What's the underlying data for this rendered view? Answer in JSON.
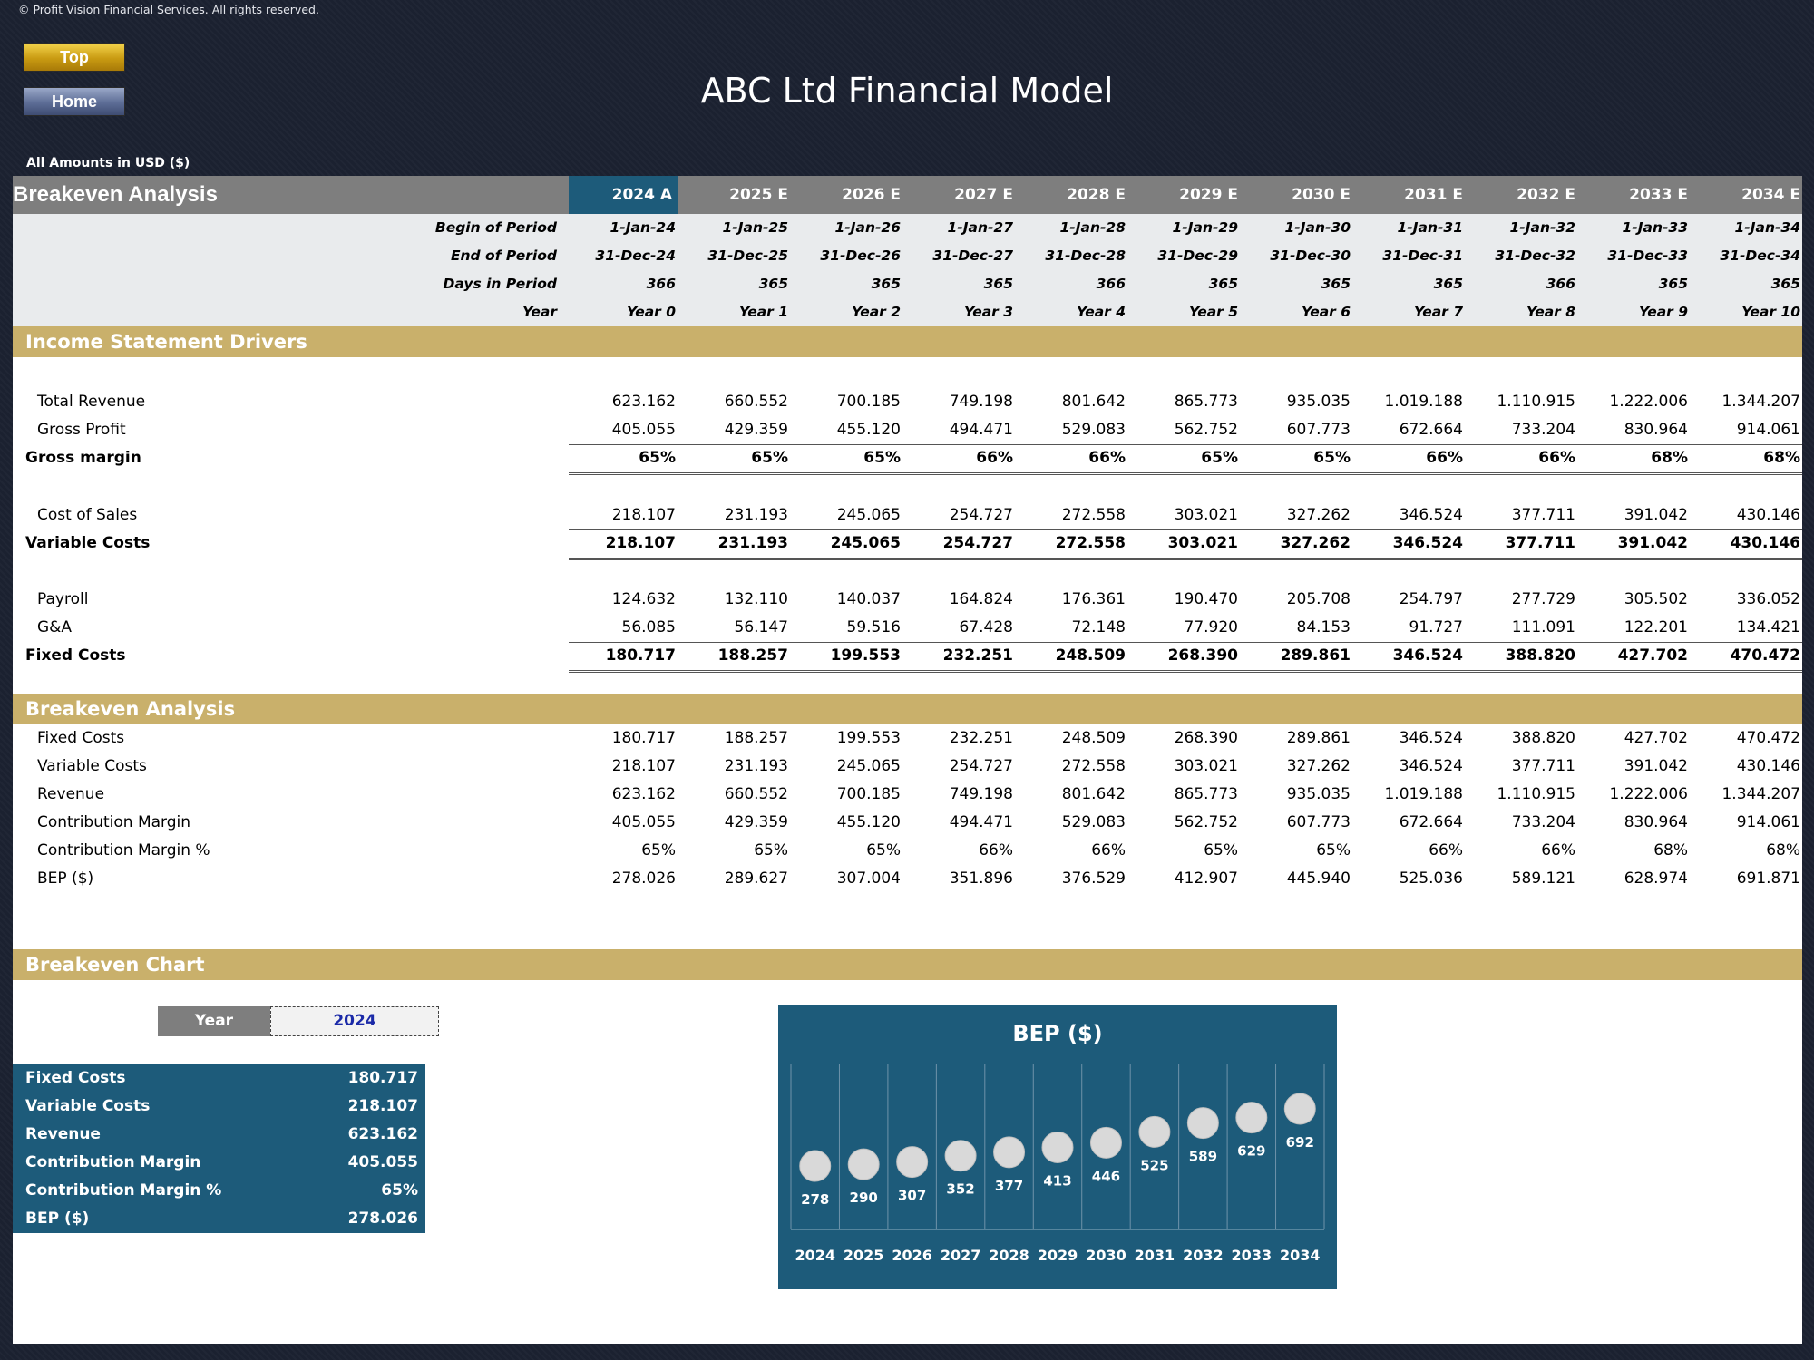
{
  "copyright": "© Profit Vision Financial Services. All rights reserved.",
  "nav": {
    "top_label": "Top",
    "home_label": "Home"
  },
  "title": "ABC Ltd Financial Model",
  "amounts_note": "All Amounts in  USD ($)",
  "header": {
    "title": "Breakeven Analysis",
    "years": [
      "2024 A",
      "2025 E",
      "2026 E",
      "2027 E",
      "2028 E",
      "2029 E",
      "2030 E",
      "2031 E",
      "2032 E",
      "2033 E",
      "2034 E"
    ]
  },
  "period_rows": [
    {
      "label": "Begin of Period",
      "values": [
        "1-Jan-24",
        "1-Jan-25",
        "1-Jan-26",
        "1-Jan-27",
        "1-Jan-28",
        "1-Jan-29",
        "1-Jan-30",
        "1-Jan-31",
        "1-Jan-32",
        "1-Jan-33",
        "1-Jan-34"
      ]
    },
    {
      "label": "End of Period",
      "values": [
        "31-Dec-24",
        "31-Dec-25",
        "31-Dec-26",
        "31-Dec-27",
        "31-Dec-28",
        "31-Dec-29",
        "31-Dec-30",
        "31-Dec-31",
        "31-Dec-32",
        "31-Dec-33",
        "31-Dec-34"
      ]
    },
    {
      "label": "Days in Period",
      "values": [
        "366",
        "365",
        "365",
        "365",
        "366",
        "365",
        "365",
        "365",
        "366",
        "365",
        "365"
      ]
    },
    {
      "label": "Year",
      "values": [
        "Year 0",
        "Year 1",
        "Year 2",
        "Year 3",
        "Year 4",
        "Year 5",
        "Year 6",
        "Year 7",
        "Year 8",
        "Year 9",
        "Year 10"
      ]
    }
  ],
  "income_section": {
    "title": "Income Statement Drivers",
    "rows": [
      {
        "label": "Total Revenue",
        "values": [
          "623.162",
          "660.552",
          "700.185",
          "749.198",
          "801.642",
          "865.773",
          "935.035",
          "1.019.188",
          "1.110.915",
          "1.222.006",
          "1.344.207"
        ]
      },
      {
        "label": "Gross Profit",
        "values": [
          "405.055",
          "429.359",
          "455.120",
          "494.471",
          "529.083",
          "562.752",
          "607.773",
          "672.664",
          "733.204",
          "830.964",
          "914.061"
        ]
      },
      {
        "label": "Gross margin",
        "values": [
          "65%",
          "65%",
          "65%",
          "66%",
          "66%",
          "65%",
          "65%",
          "66%",
          "66%",
          "68%",
          "68%"
        ]
      },
      {
        "label": "Cost of Sales",
        "values": [
          "218.107",
          "231.193",
          "245.065",
          "254.727",
          "272.558",
          "303.021",
          "327.262",
          "346.524",
          "377.711",
          "391.042",
          "430.146"
        ]
      },
      {
        "label": "Variable Costs",
        "values": [
          "218.107",
          "231.193",
          "245.065",
          "254.727",
          "272.558",
          "303.021",
          "327.262",
          "346.524",
          "377.711",
          "391.042",
          "430.146"
        ]
      },
      {
        "label": "Payroll",
        "values": [
          "124.632",
          "132.110",
          "140.037",
          "164.824",
          "176.361",
          "190.470",
          "205.708",
          "254.797",
          "277.729",
          "305.502",
          "336.052"
        ]
      },
      {
        "label": "G&A",
        "values": [
          "56.085",
          "56.147",
          "59.516",
          "67.428",
          "72.148",
          "77.920",
          "84.153",
          "91.727",
          "111.091",
          "122.201",
          "134.421"
        ]
      },
      {
        "label": "Fixed Costs",
        "values": [
          "180.717",
          "188.257",
          "199.553",
          "232.251",
          "248.509",
          "268.390",
          "289.861",
          "346.524",
          "388.820",
          "427.702",
          "470.472"
        ]
      }
    ]
  },
  "breakeven_section": {
    "title": "Breakeven Analysis",
    "rows": [
      {
        "label": "Fixed Costs",
        "values": [
          "180.717",
          "188.257",
          "199.553",
          "232.251",
          "248.509",
          "268.390",
          "289.861",
          "346.524",
          "388.820",
          "427.702",
          "470.472"
        ]
      },
      {
        "label": "Variable Costs",
        "values": [
          "218.107",
          "231.193",
          "245.065",
          "254.727",
          "272.558",
          "303.021",
          "327.262",
          "346.524",
          "377.711",
          "391.042",
          "430.146"
        ]
      },
      {
        "label": "Revenue",
        "values": [
          "623.162",
          "660.552",
          "700.185",
          "749.198",
          "801.642",
          "865.773",
          "935.035",
          "1.019.188",
          "1.110.915",
          "1.222.006",
          "1.344.207"
        ]
      },
      {
        "label": "Contribution Margin",
        "values": [
          "405.055",
          "429.359",
          "455.120",
          "494.471",
          "529.083",
          "562.752",
          "607.773",
          "672.664",
          "733.204",
          "830.964",
          "914.061"
        ]
      },
      {
        "label": "Contribution Margin %",
        "values": [
          "65%",
          "65%",
          "65%",
          "66%",
          "66%",
          "65%",
          "65%",
          "66%",
          "66%",
          "68%",
          "68%"
        ]
      },
      {
        "label": "BEP ($)",
        "values": [
          "278.026",
          "289.627",
          "307.004",
          "351.896",
          "376.529",
          "412.907",
          "445.940",
          "525.036",
          "589.121",
          "628.974",
          "691.871"
        ]
      }
    ]
  },
  "chart_section": {
    "title": "Breakeven Chart",
    "year_label": "Year",
    "year_value": "2024",
    "summary": [
      {
        "label": "Fixed Costs",
        "value": "180.717"
      },
      {
        "label": "Variable Costs",
        "value": "218.107"
      },
      {
        "label": "Revenue",
        "value": "623.162"
      },
      {
        "label": "Contribution Margin",
        "value": "405.055"
      },
      {
        "label": "Contribution Margin %",
        "value": "65%"
      },
      {
        "label": "BEP ($)",
        "value": "278.026"
      }
    ]
  },
  "colors": {
    "header_grey": "#7e7e7e",
    "accent_blue": "#1d5b7a",
    "section_gold": "#c9b06b",
    "period_bg": "#e9ebed"
  },
  "chart_data": {
    "type": "scatter",
    "title": "BEP ($)",
    "categories": [
      "2024",
      "2025",
      "2026",
      "2027",
      "2028",
      "2029",
      "2030",
      "2031",
      "2032",
      "2033",
      "2034"
    ],
    "values": [
      278,
      290,
      307,
      352,
      377,
      413,
      446,
      525,
      589,
      629,
      692
    ],
    "labels": [
      "278",
      "290",
      "307",
      "352",
      "377",
      "413",
      "446",
      "525",
      "589",
      "629",
      "692"
    ],
    "grid": true,
    "legend": "none"
  }
}
